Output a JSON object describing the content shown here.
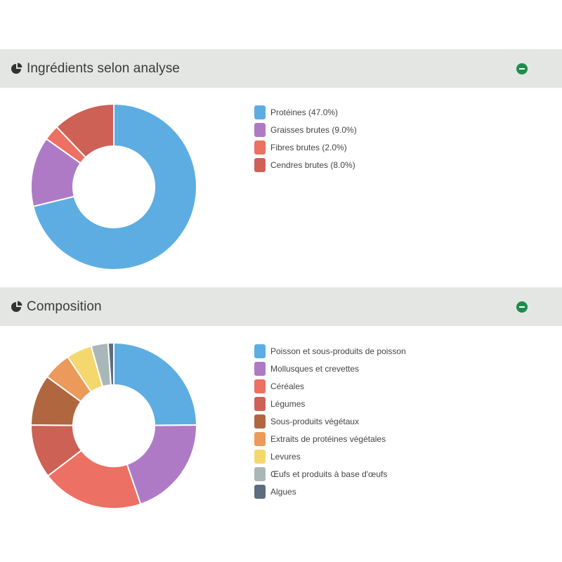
{
  "panels": [
    {
      "title": "Ingrédients selon analyse",
      "icon": "pie-chart-icon",
      "collapse_icon": "minus-circle-icon"
    },
    {
      "title": "Composition",
      "icon": "pie-chart-icon",
      "collapse_icon": "minus-circle-icon"
    }
  ],
  "chart_data": [
    {
      "type": "pie",
      "variant": "donut",
      "categories": [
        "Protéines",
        "Graisses brutes",
        "Fibres brutes",
        "Cendres brutes"
      ],
      "values": [
        47.0,
        9.0,
        2.0,
        8.0
      ],
      "legend_labels": [
        "Protéines (47.0%)",
        "Graisses brutes (9.0%)",
        "Fibres brutes (2.0%)",
        "Cendres brutes (8.0%)"
      ],
      "colors": [
        "#5dade2",
        "#af7ac5",
        "#ec7063",
        "#cd6155"
      ],
      "legend_position": "right"
    },
    {
      "type": "pie",
      "variant": "donut",
      "categories": [
        "Poisson et sous-produits de poisson",
        "Mollusques et crevettes",
        "Céréales",
        "Légumes",
        "Sous-produits végétaux",
        "Extraits de protéines végétales",
        "Levures",
        "Œufs et produits à base d'œufs",
        "Algues"
      ],
      "values": [
        22.5,
        18,
        18,
        9.5,
        9,
        5,
        4.5,
        3,
        1
      ],
      "legend_labels": [
        "Poisson et sous-produits de poisson",
        "Mollusques et crevettes",
        "Céréales",
        "Légumes",
        "Sous-produits végétaux",
        "Extraits de protéines végétales",
        "Levures",
        "Œufs et produits à base d'œufs",
        "Algues"
      ],
      "colors": [
        "#5dade2",
        "#af7ac5",
        "#ec7063",
        "#cd6155",
        "#b0663f",
        "#eb9a5b",
        "#f4d86e",
        "#aab7b8",
        "#5d6d7e"
      ],
      "legend_position": "right"
    }
  ]
}
